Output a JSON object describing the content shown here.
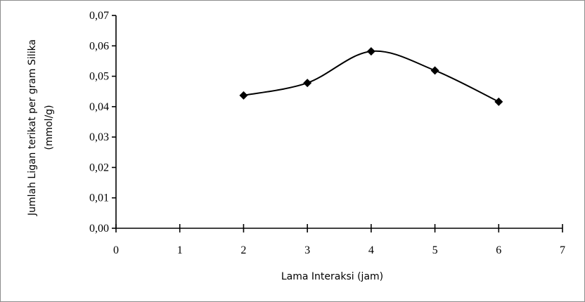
{
  "chart_data": {
    "type": "line",
    "title": "",
    "xlabel": "Lama Interaksi (jam)",
    "ylabel_line1": "Jumlah Ligan terikat per gram Silika",
    "ylabel_line2": "(mmol/g)",
    "xlim": [
      0,
      7
    ],
    "ylim": [
      0,
      0.07
    ],
    "x_ticks": [
      0,
      1,
      2,
      3,
      4,
      5,
      6,
      7
    ],
    "x_tick_labels": [
      "0",
      "1",
      "2",
      "3",
      "4",
      "5",
      "6",
      "7"
    ],
    "y_ticks": [
      0,
      0.01,
      0.02,
      0.03,
      0.04,
      0.05,
      0.06,
      0.07
    ],
    "y_tick_labels": [
      "0,00",
      "0,01",
      "0,02",
      "0,03",
      "0,04",
      "0,05",
      "0,06",
      "0,07"
    ],
    "grid": false,
    "legend": "none",
    "marker": "diamond",
    "smooth": true,
    "line_color": "#000000",
    "series": [
      {
        "x": [
          2,
          3,
          4,
          5,
          6
        ],
        "values": [
          0.0437,
          0.0478,
          0.0582,
          0.0519,
          0.0416
        ]
      }
    ]
  }
}
